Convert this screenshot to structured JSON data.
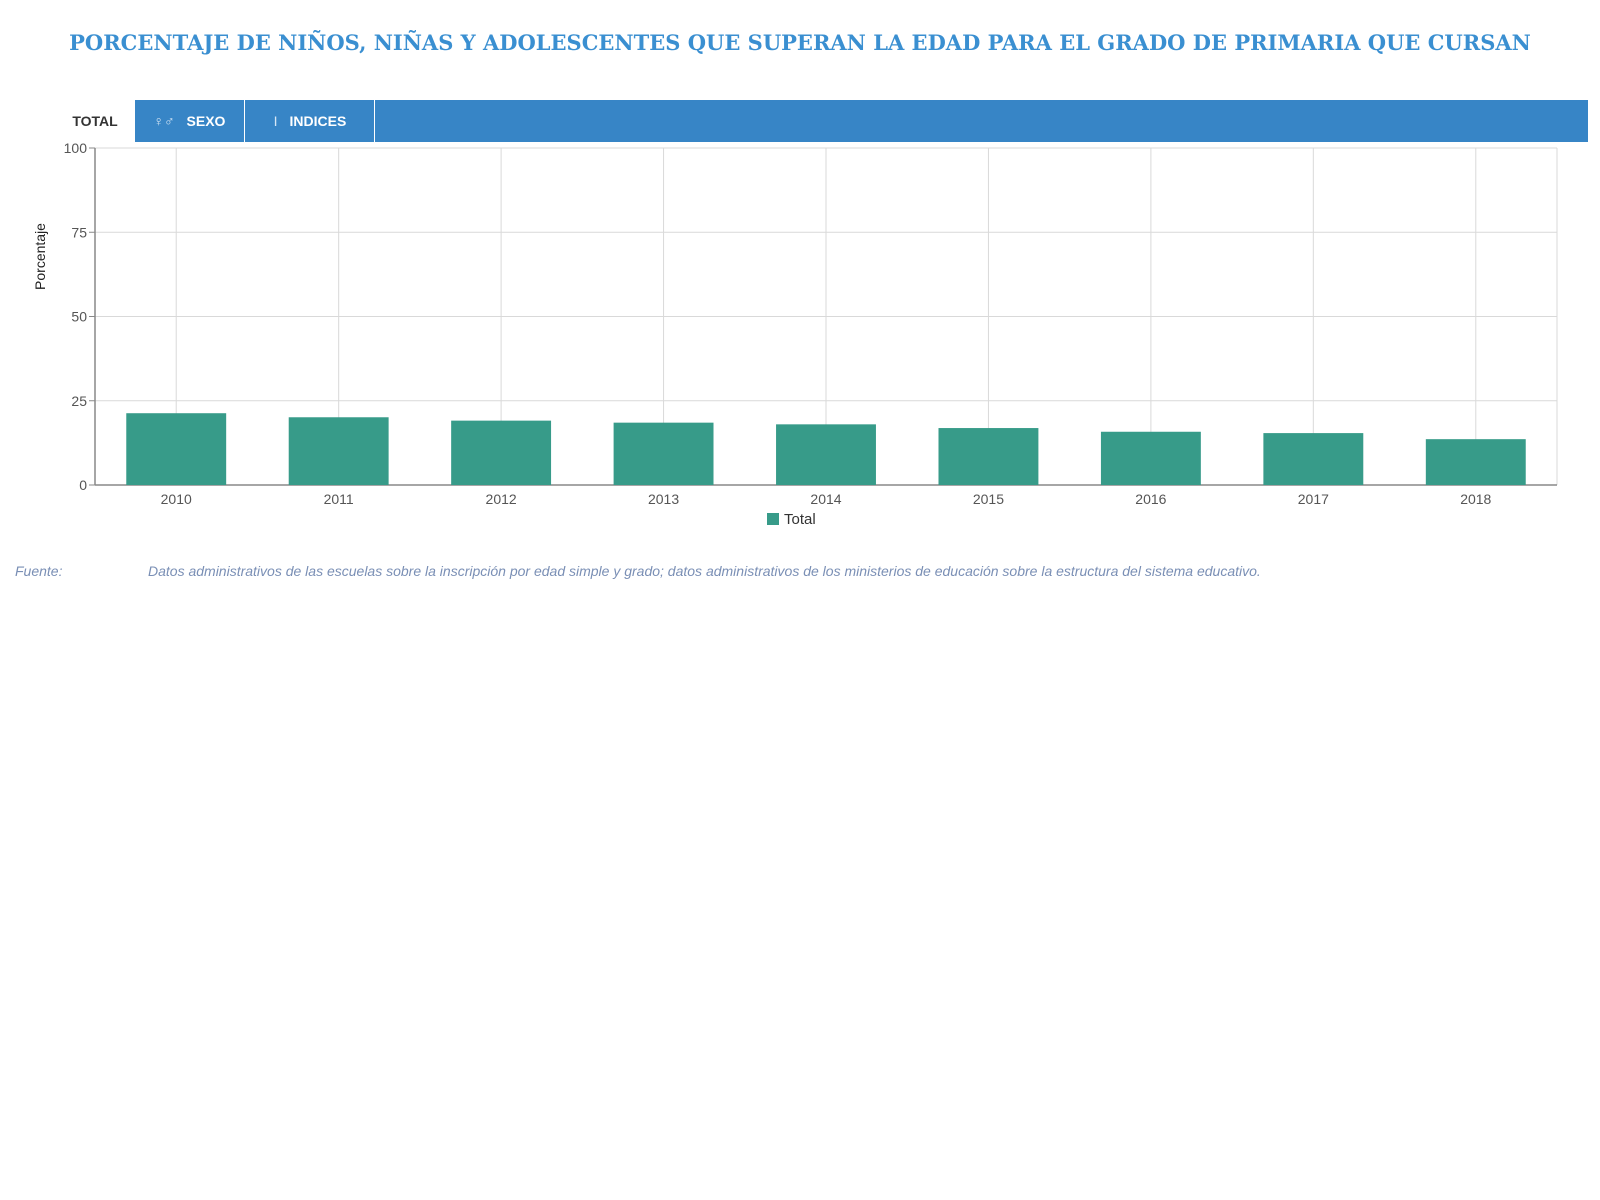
{
  "title": "PORCENTAJE DE NIÑOS, NIÑAS Y ADOLESCENTES QUE SUPERAN LA EDAD PARA EL GRADO DE PRIMARIA QUE CURSAN",
  "tabs": {
    "total": "TOTAL",
    "sexo": "SEXO",
    "indices": "INDICES"
  },
  "colors": {
    "accent": "#3785c6",
    "title": "#3a8fd1",
    "bar": "#379b89"
  },
  "chart_data": {
    "type": "bar",
    "categories": [
      "2010",
      "2011",
      "2012",
      "2013",
      "2014",
      "2015",
      "2016",
      "2017",
      "2018"
    ],
    "series": [
      {
        "name": "Total",
        "values": [
          21.3,
          20.1,
          19.1,
          18.5,
          18.0,
          16.9,
          15.8,
          15.4,
          13.6
        ]
      }
    ],
    "ylabel": "Porcentaje",
    "xlabel": "",
    "ylim": [
      0,
      100
    ],
    "yticks": [
      0,
      25,
      50,
      75,
      100
    ],
    "grid": true,
    "legend": "bottom-center"
  },
  "source": {
    "label": "Fuente:",
    "text": "Datos administrativos de las escuelas sobre la inscripción por edad simple y grado; datos administrativos de los ministerios de educación sobre la estructura del sistema educativo."
  }
}
